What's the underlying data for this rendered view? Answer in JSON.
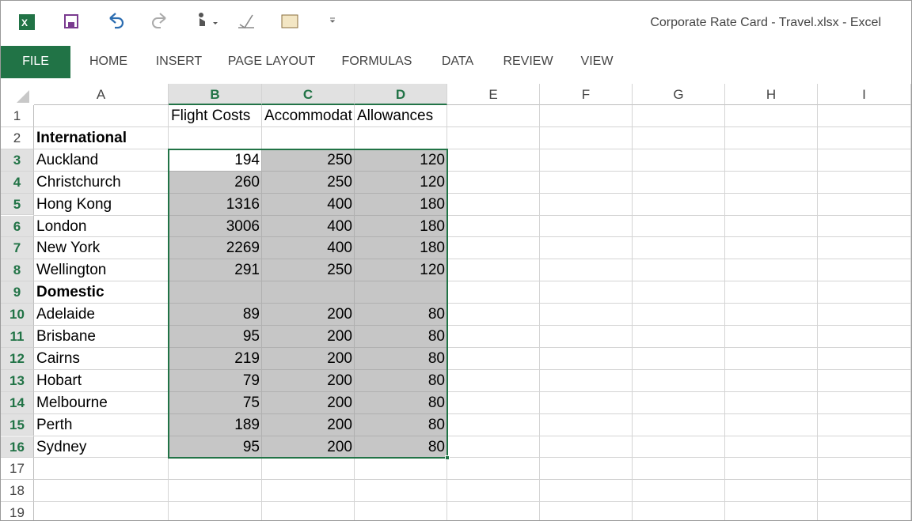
{
  "title_bar": {
    "title": "Corporate Rate Card - Travel.xlsx - Excel"
  },
  "ribbon": {
    "tabs": [
      "FILE",
      "HOME",
      "INSERT",
      "PAGE LAYOUT",
      "FORMULAS",
      "DATA",
      "REVIEW",
      "VIEW"
    ]
  },
  "sheet": {
    "columns": [
      "A",
      "B",
      "C",
      "D",
      "E",
      "F",
      "G",
      "H",
      "I"
    ],
    "rows": [
      {
        "number": 1,
        "B": "Flight Costs",
        "C": "Accommodat",
        "D": "Allowances"
      },
      {
        "number": 2,
        "A": "International"
      },
      {
        "number": 3,
        "A": "Auckland",
        "B": 194,
        "C": 250,
        "D": 120
      },
      {
        "number": 4,
        "A": "Christchurch",
        "B": 260,
        "C": 250,
        "D": 120
      },
      {
        "number": 5,
        "A": "Hong Kong",
        "B": 1316,
        "C": 400,
        "D": 180
      },
      {
        "number": 6,
        "A": "London",
        "B": 3006,
        "C": 400,
        "D": 180
      },
      {
        "number": 7,
        "A": "New York",
        "B": 2269,
        "C": 400,
        "D": 180
      },
      {
        "number": 8,
        "A": "Wellington",
        "B": 291,
        "C": 250,
        "D": 120
      },
      {
        "number": 9,
        "A": "Domestic"
      },
      {
        "number": 10,
        "A": "Adelaide",
        "B": 89,
        "C": 200,
        "D": 80
      },
      {
        "number": 11,
        "A": "Brisbane",
        "B": 95,
        "C": 200,
        "D": 80
      },
      {
        "number": 12,
        "A": "Cairns",
        "B": 219,
        "C": 200,
        "D": 80
      },
      {
        "number": 13,
        "A": "Hobart",
        "B": 79,
        "C": 200,
        "D": 80
      },
      {
        "number": 14,
        "A": "Melbourne",
        "B": 75,
        "C": 200,
        "D": 80
      },
      {
        "number": 15,
        "A": "Perth",
        "B": 189,
        "C": 200,
        "D": 80
      },
      {
        "number": 16,
        "A": "Sydney",
        "B": 95,
        "C": 200,
        "D": 80
      },
      {
        "number": 17
      },
      {
        "number": 18
      },
      {
        "number": 19
      }
    ]
  }
}
